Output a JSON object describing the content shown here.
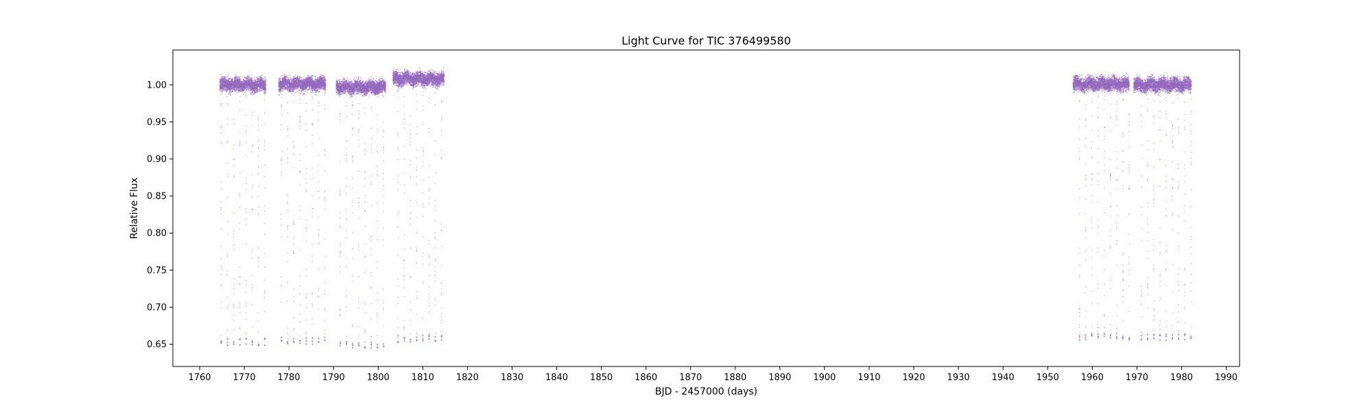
{
  "chart_data": {
    "type": "scatter",
    "title": "Light Curve for TIC 376499580",
    "xlabel": "BJD - 2457000 (days)",
    "ylabel": "Relative Flux",
    "xlim": [
      1754,
      1993
    ],
    "ylim": [
      0.62,
      1.047
    ],
    "x_ticks": [
      1760,
      1770,
      1780,
      1790,
      1800,
      1810,
      1820,
      1830,
      1840,
      1850,
      1860,
      1870,
      1880,
      1890,
      1900,
      1910,
      1920,
      1930,
      1940,
      1950,
      1960,
      1970,
      1980,
      1990
    ],
    "y_ticks": [
      0.65,
      0.7,
      0.75,
      0.8,
      0.85,
      0.9,
      0.95,
      1.0
    ],
    "x_tick_labels": [
      "1760",
      "1770",
      "1780",
      "1790",
      "1800",
      "1810",
      "1820",
      "1830",
      "1840",
      "1850",
      "1860",
      "1870",
      "1880",
      "1890",
      "1900",
      "1910",
      "1920",
      "1930",
      "1940",
      "1950",
      "1960",
      "1970",
      "1980",
      "1990"
    ],
    "y_tick_labels": [
      "0.65",
      "0.70",
      "0.75",
      "0.80",
      "0.85",
      "0.90",
      "0.95",
      "1.00"
    ],
    "grid": false,
    "legend": "none",
    "marker_color": "#9467bd",
    "series": [
      {
        "segments": [
          {
            "x_start": 1764.5,
            "x_end": 1774.8,
            "baseline": 1.0,
            "min_flux": 0.648
          },
          {
            "x_start": 1777.7,
            "x_end": 1788.2,
            "baseline": 1.001,
            "min_flux": 0.65
          },
          {
            "x_start": 1790.6,
            "x_end": 1801.7,
            "baseline": 0.997,
            "min_flux": 0.645
          },
          {
            "x_start": 1803.3,
            "x_end": 1814.8,
            "baseline": 1.008,
            "min_flux": 0.652
          },
          {
            "x_start": 1955.7,
            "x_end": 1968.3,
            "baseline": 1.001,
            "min_flux": 0.655
          },
          {
            "x_start": 1969.3,
            "x_end": 1982.2,
            "baseline": 1.0,
            "min_flux": 0.655
          }
        ],
        "eclipse_period_days": 1.39,
        "eclipse_depth_min": 0.645
      }
    ]
  }
}
